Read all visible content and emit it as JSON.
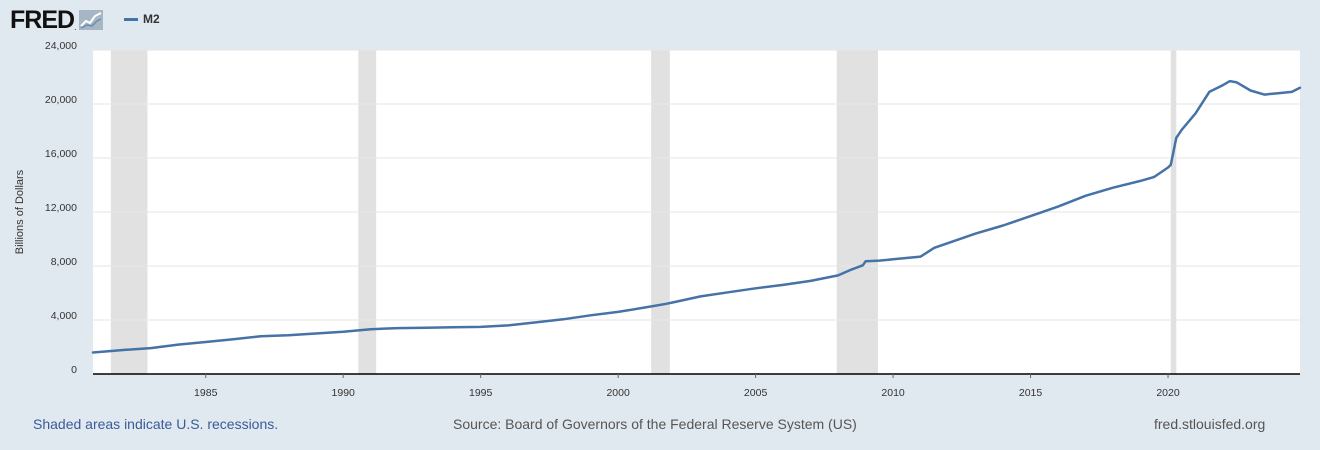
{
  "header": {
    "logo_text": "FRED",
    "legend_label": "M2"
  },
  "colors": {
    "series": "#4572a7",
    "recession": "#e1e1e1",
    "grid": "#e6e6e6",
    "background": "#e1e9f0"
  },
  "footer": {
    "recession_note": "Shaded areas indicate U.S. recessions.",
    "source": "Source: Board of Governors of the Federal Reserve System (US)",
    "site": "fred.stlouisfed.org"
  },
  "chart_data": {
    "type": "line",
    "title": "",
    "xlabel": "",
    "ylabel": "Billions of Dollars",
    "xlim": [
      1980.9,
      2024.8
    ],
    "ylim": [
      0,
      24000
    ],
    "y_ticks": [
      0,
      4000,
      8000,
      12000,
      16000,
      20000,
      24000
    ],
    "y_tick_labels": [
      "0",
      "4,000",
      "8,000",
      "12,000",
      "16,000",
      "20,000",
      "24,000"
    ],
    "x_ticks": [
      1985,
      1990,
      1995,
      2000,
      2005,
      2010,
      2015,
      2020
    ],
    "x_tick_labels": [
      "1985",
      "1990",
      "1995",
      "2000",
      "2005",
      "2010",
      "2015",
      "2020"
    ],
    "grid": true,
    "recessions": [
      [
        1981.55,
        1982.88
      ],
      [
        1990.55,
        1991.2
      ],
      [
        2001.2,
        2001.88
      ],
      [
        2007.95,
        2009.45
      ],
      [
        2020.1,
        2020.3
      ]
    ],
    "series": [
      {
        "name": "M2",
        "x": [
          1980.9,
          1982.0,
          1983.0,
          1984.0,
          1985.0,
          1986.0,
          1987.0,
          1988.0,
          1989.0,
          1990.0,
          1991.0,
          1992.0,
          1993.0,
          1994.0,
          1995.0,
          1996.0,
          1997.0,
          1998.0,
          1999.0,
          2000.0,
          2001.0,
          2001.75,
          2002.0,
          2003.0,
          2004.0,
          2005.0,
          2006.0,
          2007.0,
          2008.0,
          2008.5,
          2008.9,
          2009.0,
          2009.5,
          2010.0,
          2011.0,
          2011.5,
          2012.0,
          2013.0,
          2014.0,
          2015.0,
          2016.0,
          2017.0,
          2018.0,
          2019.0,
          2019.5,
          2020.0,
          2020.1,
          2020.3,
          2020.5,
          2021.0,
          2021.5,
          2022.0,
          2022.25,
          2022.5,
          2023.0,
          2023.5,
          2024.0,
          2024.5,
          2024.8
        ],
        "values": [
          1590,
          1780,
          1920,
          2180,
          2370,
          2580,
          2790,
          2870,
          3000,
          3130,
          3320,
          3400,
          3430,
          3460,
          3490,
          3600,
          3820,
          4050,
          4350,
          4600,
          4930,
          5200,
          5300,
          5750,
          6050,
          6350,
          6600,
          6900,
          7300,
          7750,
          8050,
          8350,
          8400,
          8500,
          8700,
          9350,
          9700,
          10400,
          11000,
          11700,
          12400,
          13200,
          13800,
          14300,
          14600,
          15300,
          15500,
          17500,
          18100,
          19300,
          20900,
          21400,
          21700,
          21600,
          21000,
          20700,
          20800,
          20900,
          21200
        ]
      }
    ]
  }
}
